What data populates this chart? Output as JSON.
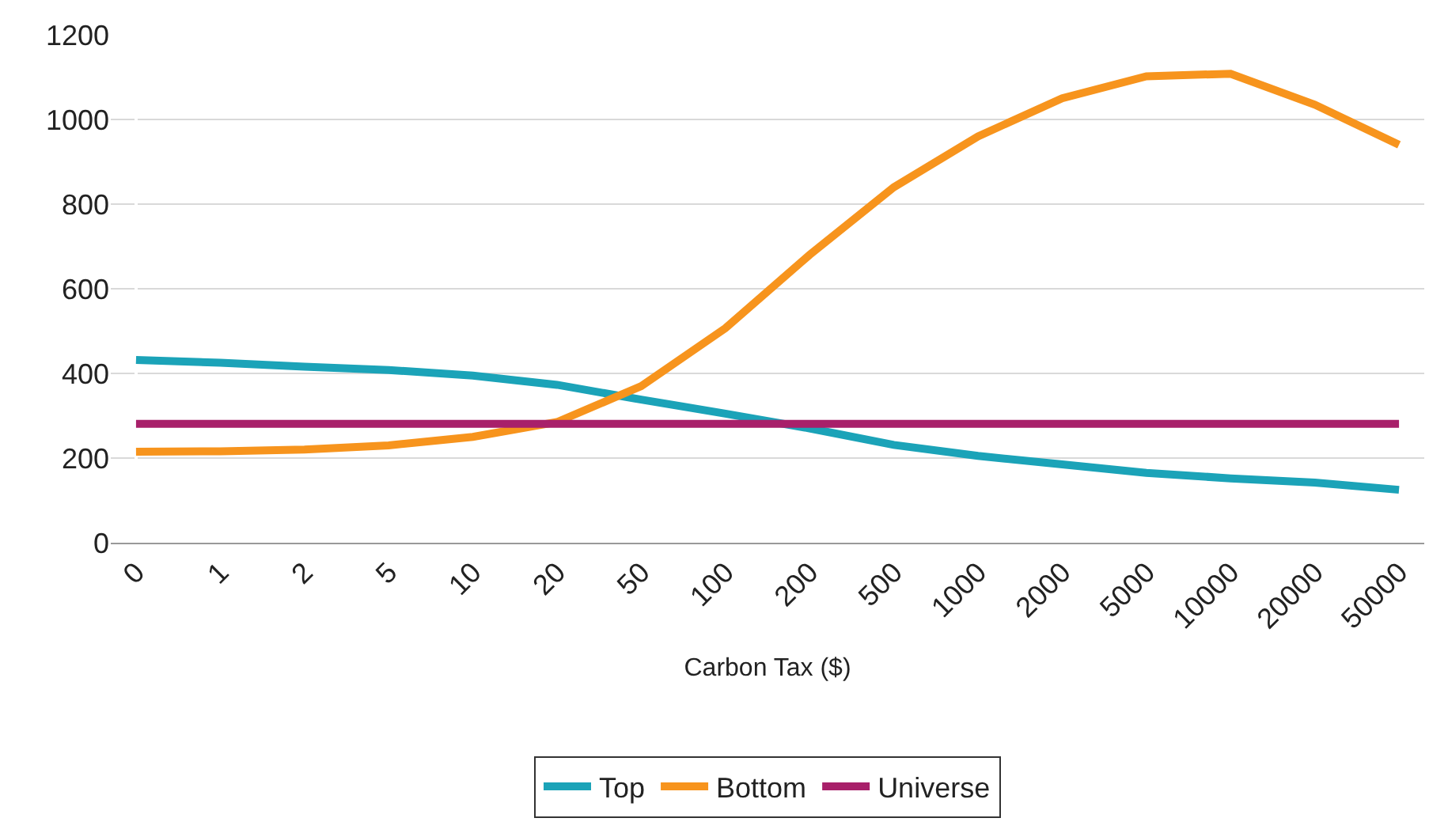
{
  "chart_data": {
    "type": "line",
    "xlabel": "Carbon Tax ($)",
    "categories": [
      "0",
      "1",
      "2",
      "5",
      "10",
      "20",
      "50",
      "100",
      "200",
      "500",
      "1000",
      "2000",
      "5000",
      "10000",
      "20000",
      "50000"
    ],
    "series": [
      {
        "name": "Top",
        "color": "#1ba3b8",
        "values": [
          432,
          425,
          416,
          408,
          395,
          373,
          338,
          305,
          270,
          231,
          205,
          185,
          165,
          152,
          142,
          125
        ]
      },
      {
        "name": "Bottom",
        "color": "#f7941d",
        "values": [
          215,
          216,
          220,
          230,
          250,
          285,
          370,
          507,
          680,
          840,
          960,
          1050,
          1102,
          1108,
          1035,
          940
        ]
      },
      {
        "name": "Universe",
        "color": "#a8206a",
        "values": [
          281,
          281,
          281,
          281,
          281,
          281,
          281,
          281,
          281,
          281,
          281,
          281,
          281,
          281,
          281,
          281
        ]
      }
    ],
    "ylim": [
      0,
      1200
    ],
    "yticks": [
      0,
      200,
      400,
      600,
      800,
      1000,
      1200
    ],
    "grid": "y",
    "legend": "bottom",
    "marker": "none",
    "line_style": "solid"
  }
}
